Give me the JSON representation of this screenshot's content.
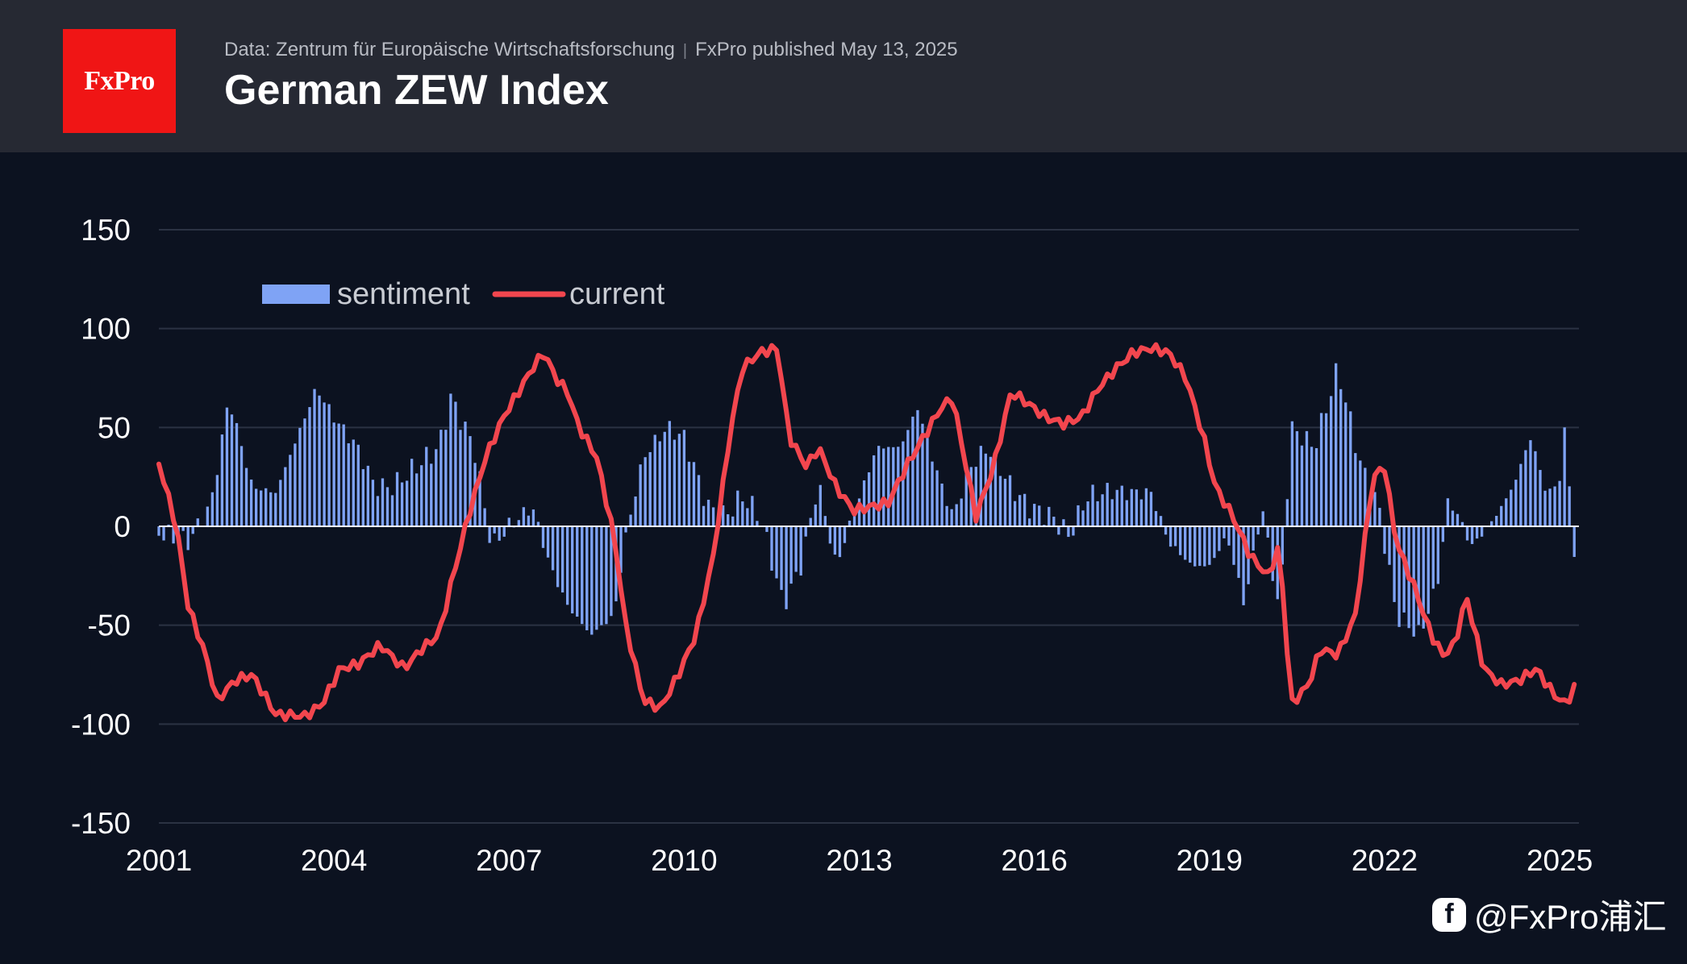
{
  "header": {
    "logo_text": "FxPro",
    "source": "Data: Zentrum für Europäische Wirtschaftsforschung",
    "published": "FxPro published May 13, 2025",
    "title": "German ZEW Index"
  },
  "watermark": {
    "icon": "facebook-icon",
    "text": "@FxPro浦汇"
  },
  "colors": {
    "background": "#0c1220",
    "header": "#262933",
    "logo": "#f01515",
    "sentiment": "#7fa3f5",
    "current": "#f2464e",
    "grid": "#2b3243",
    "zero_line": "#ffffff"
  },
  "chart_data": {
    "type": "bar+line",
    "x_start": 2001,
    "x_end": 2025.33,
    "xlim": [
      2001,
      2025.33
    ],
    "ylim": [
      -150,
      150
    ],
    "xticks": [
      2001,
      2004,
      2007,
      2010,
      2013,
      2016,
      2019,
      2022,
      2025
    ],
    "yticks": [
      150,
      100,
      50,
      0,
      -50,
      -100,
      -150
    ],
    "legend": {
      "placement": "top-left",
      "entries": [
        "sentiment",
        "current"
      ]
    },
    "grid": true,
    "series": [
      {
        "name": "sentiment",
        "kind": "bar",
        "points": [
          [
            2001.0,
            -3
          ],
          [
            2001.5,
            -8
          ],
          [
            2001.9,
            12
          ],
          [
            2002.2,
            65
          ],
          [
            2002.6,
            20
          ],
          [
            2003.0,
            17
          ],
          [
            2003.3,
            40
          ],
          [
            2003.7,
            70
          ],
          [
            2004.0,
            55
          ],
          [
            2004.4,
            40
          ],
          [
            2004.7,
            20
          ],
          [
            2005.0,
            20
          ],
          [
            2005.4,
            30
          ],
          [
            2005.8,
            40
          ],
          [
            2006.0,
            65
          ],
          [
            2006.4,
            40
          ],
          [
            2006.7,
            -10
          ],
          [
            2007.0,
            0
          ],
          [
            2007.4,
            10
          ],
          [
            2007.7,
            -20
          ],
          [
            2008.0,
            -40
          ],
          [
            2008.4,
            -55
          ],
          [
            2008.8,
            -45
          ],
          [
            2009.0,
            -5
          ],
          [
            2009.3,
            35
          ],
          [
            2009.7,
            50
          ],
          [
            2010.0,
            45
          ],
          [
            2010.4,
            10
          ],
          [
            2010.7,
            5
          ],
          [
            2011.0,
            15
          ],
          [
            2011.3,
            5
          ],
          [
            2011.7,
            -40
          ],
          [
            2012.0,
            -20
          ],
          [
            2012.3,
            22
          ],
          [
            2012.6,
            -20
          ],
          [
            2012.9,
            6
          ],
          [
            2013.3,
            40
          ],
          [
            2013.7,
            40
          ],
          [
            2014.0,
            60
          ],
          [
            2014.3,
            30
          ],
          [
            2014.6,
            5
          ],
          [
            2014.9,
            30
          ],
          [
            2015.2,
            40
          ],
          [
            2015.6,
            20
          ],
          [
            2015.9,
            10
          ],
          [
            2016.3,
            5
          ],
          [
            2016.6,
            -5
          ],
          [
            2016.9,
            15
          ],
          [
            2017.3,
            18
          ],
          [
            2017.7,
            17
          ],
          [
            2018.0,
            17
          ],
          [
            2018.3,
            -8
          ],
          [
            2018.7,
            -20
          ],
          [
            2019.0,
            -20
          ],
          [
            2019.3,
            -5
          ],
          [
            2019.6,
            -40
          ],
          [
            2019.9,
            10
          ],
          [
            2020.2,
            -45
          ],
          [
            2020.4,
            50
          ],
          [
            2020.8,
            40
          ],
          [
            2021.2,
            80
          ],
          [
            2021.6,
            30
          ],
          [
            2021.9,
            10
          ],
          [
            2022.2,
            -45
          ],
          [
            2022.6,
            -55
          ],
          [
            2022.9,
            -30
          ],
          [
            2023.1,
            15
          ],
          [
            2023.5,
            -10
          ],
          [
            2023.9,
            5
          ],
          [
            2024.2,
            20
          ],
          [
            2024.5,
            45
          ],
          [
            2024.8,
            15
          ],
          [
            2025.0,
            25
          ],
          [
            2025.1,
            51
          ],
          [
            2025.25,
            -14
          ]
        ]
      },
      {
        "name": "current",
        "kind": "line",
        "points": [
          [
            2001.0,
            32
          ],
          [
            2001.3,
            0
          ],
          [
            2001.5,
            -40
          ],
          [
            2001.8,
            -65
          ],
          [
            2002.0,
            -88
          ],
          [
            2002.3,
            -78
          ],
          [
            2002.6,
            -75
          ],
          [
            2003.0,
            -95
          ],
          [
            2003.5,
            -96
          ],
          [
            2003.8,
            -90
          ],
          [
            2004.1,
            -72
          ],
          [
            2004.4,
            -70
          ],
          [
            2004.8,
            -60
          ],
          [
            2005.2,
            -72
          ],
          [
            2005.5,
            -62
          ],
          [
            2005.8,
            -55
          ],
          [
            2006.0,
            -30
          ],
          [
            2006.3,
            5
          ],
          [
            2006.6,
            35
          ],
          [
            2006.9,
            55
          ],
          [
            2007.2,
            70
          ],
          [
            2007.4,
            80
          ],
          [
            2007.6,
            88
          ],
          [
            2007.8,
            75
          ],
          [
            2008.0,
            68
          ],
          [
            2008.2,
            50
          ],
          [
            2008.5,
            35
          ],
          [
            2008.8,
            -5
          ],
          [
            2009.0,
            -50
          ],
          [
            2009.3,
            -88
          ],
          [
            2009.6,
            -92
          ],
          [
            2009.9,
            -75
          ],
          [
            2010.2,
            -55
          ],
          [
            2010.5,
            -15
          ],
          [
            2010.8,
            50
          ],
          [
            2011.0,
            80
          ],
          [
            2011.3,
            88
          ],
          [
            2011.6,
            90
          ],
          [
            2011.8,
            45
          ],
          [
            2012.1,
            30
          ],
          [
            2012.3,
            40
          ],
          [
            2012.6,
            20
          ],
          [
            2012.9,
            8
          ],
          [
            2013.2,
            10
          ],
          [
            2013.5,
            12
          ],
          [
            2013.8,
            30
          ],
          [
            2014.1,
            45
          ],
          [
            2014.4,
            60
          ],
          [
            2014.6,
            65
          ],
          [
            2014.8,
            35
          ],
          [
            2015.0,
            5
          ],
          [
            2015.3,
            30
          ],
          [
            2015.6,
            68
          ],
          [
            2015.9,
            62
          ],
          [
            2016.2,
            55
          ],
          [
            2016.5,
            52
          ],
          [
            2016.8,
            55
          ],
          [
            2017.1,
            70
          ],
          [
            2017.4,
            80
          ],
          [
            2017.7,
            88
          ],
          [
            2018.0,
            90
          ],
          [
            2018.3,
            88
          ],
          [
            2018.6,
            75
          ],
          [
            2018.9,
            45
          ],
          [
            2019.1,
            20
          ],
          [
            2019.4,
            5
          ],
          [
            2019.7,
            -15
          ],
          [
            2020.0,
            -25
          ],
          [
            2020.2,
            -10
          ],
          [
            2020.4,
            -90
          ],
          [
            2020.7,
            -80
          ],
          [
            2020.9,
            -62
          ],
          [
            2021.2,
            -65
          ],
          [
            2021.5,
            -45
          ],
          [
            2021.8,
            25
          ],
          [
            2022.0,
            30
          ],
          [
            2022.2,
            -8
          ],
          [
            2022.5,
            -30
          ],
          [
            2022.8,
            -55
          ],
          [
            2023.0,
            -65
          ],
          [
            2023.2,
            -60
          ],
          [
            2023.4,
            -35
          ],
          [
            2023.7,
            -72
          ],
          [
            2024.0,
            -80
          ],
          [
            2024.3,
            -78
          ],
          [
            2024.6,
            -72
          ],
          [
            2024.9,
            -85
          ],
          [
            2025.1,
            -90
          ],
          [
            2025.25,
            -82
          ]
        ]
      }
    ]
  }
}
